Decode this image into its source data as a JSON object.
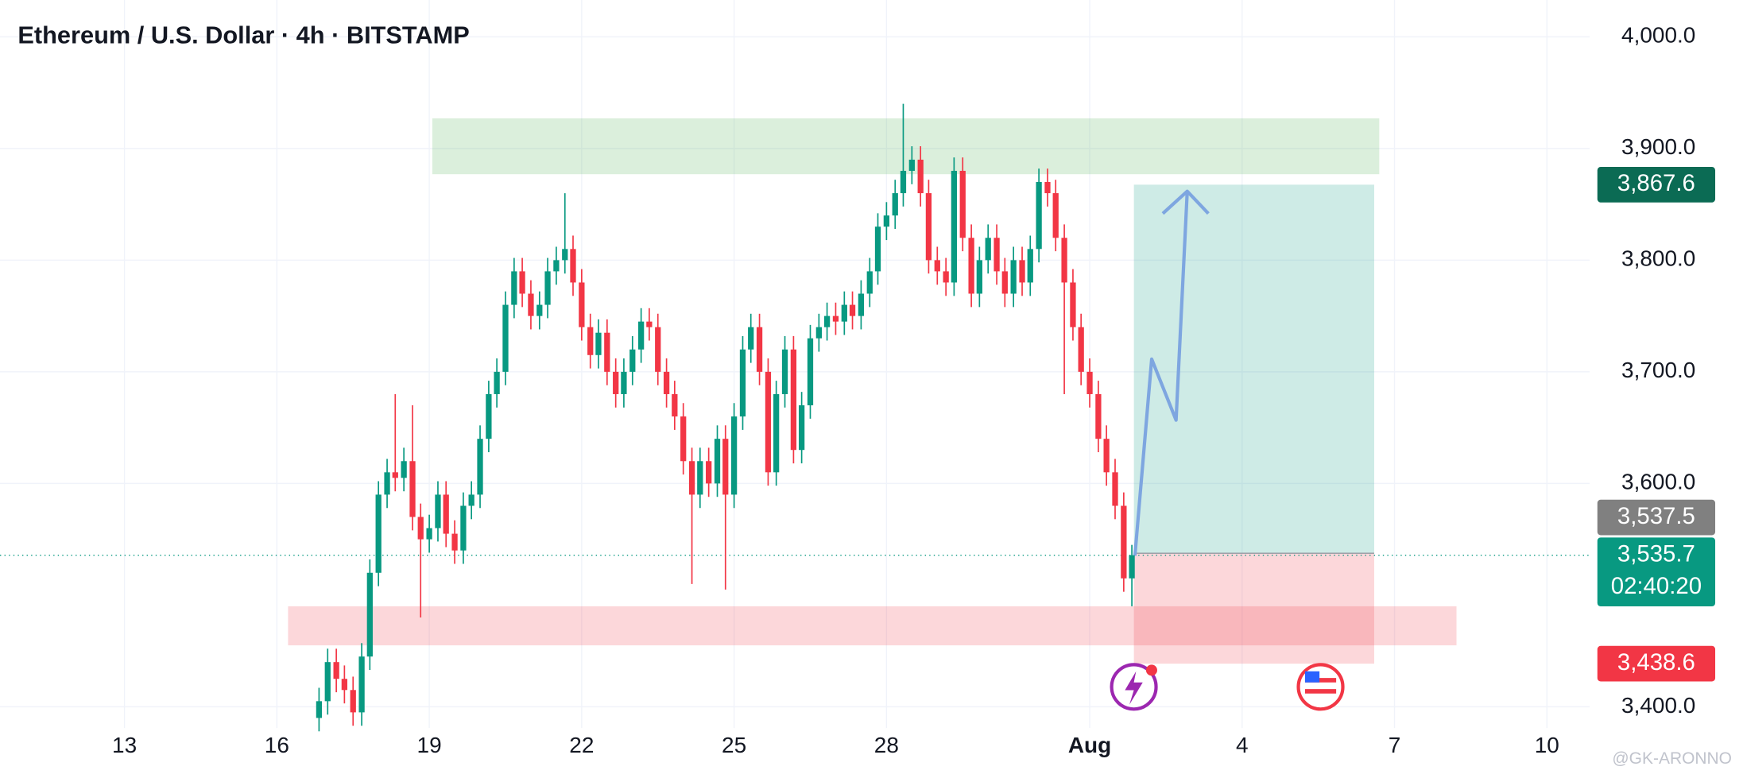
{
  "chart_data": {
    "type": "candlestick",
    "title": "Ethereum / U.S. Dollar · 4h · BITSTAMP",
    "watermark": "@GK-ARONNO",
    "up_color": "#089981",
    "down_color": "#f23645",
    "grid": true,
    "xlim": [
      10.55,
      41.84
    ],
    "ylim": [
      3381,
      4033
    ],
    "xticks": [
      13,
      16,
      19,
      22,
      25,
      28,
      {
        "value": 32,
        "label": "Aug"
      },
      {
        "value": 35,
        "label": "4"
      },
      {
        "value": 38,
        "label": "7"
      },
      {
        "value": 41,
        "label": "10"
      }
    ],
    "yticks": [
      {
        "value": 3400,
        "label": "3,400.0"
      },
      {
        "value": 3600,
        "label": "3,600.0"
      },
      {
        "value": 3700,
        "label": "3,700.0"
      },
      {
        "value": 3800,
        "label": "3,800.0"
      },
      {
        "value": 3900,
        "label": "3,900.0"
      },
      {
        "value": 4000,
        "label": "4,000.0"
      }
    ],
    "x": [
      16.83,
      17,
      17.17,
      17.33,
      17.5,
      17.67,
      17.83,
      18,
      18.17,
      18.33,
      18.5,
      18.67,
      18.83,
      19,
      19.17,
      19.33,
      19.5,
      19.67,
      19.83,
      20,
      20.17,
      20.33,
      20.5,
      20.67,
      20.83,
      21,
      21.17,
      21.33,
      21.5,
      21.67,
      21.83,
      22,
      22.17,
      22.33,
      22.5,
      22.67,
      22.83,
      23,
      23.17,
      23.33,
      23.5,
      23.67,
      23.83,
      24,
      24.17,
      24.33,
      24.5,
      24.67,
      24.83,
      25,
      25.17,
      25.33,
      25.5,
      25.67,
      25.83,
      26,
      26.17,
      26.33,
      26.5,
      26.67,
      26.83,
      27,
      27.17,
      27.33,
      27.5,
      27.67,
      27.83,
      28,
      28.17,
      28.33,
      28.5,
      28.67,
      28.83,
      29,
      29.17,
      29.33,
      29.5,
      29.67,
      29.83,
      30,
      30.17,
      30.33,
      30.5,
      30.67,
      30.83,
      31,
      31.17,
      31.33,
      31.5,
      31.67,
      31.83,
      32,
      32.17,
      32.33,
      32.5,
      32.67,
      32.83
    ],
    "open": [
      3390,
      3405,
      3440,
      3425,
      3415,
      3395,
      3445,
      3520,
      3590,
      3610,
      3605,
      3620,
      3570,
      3550,
      3560,
      3590,
      3555,
      3540,
      3580,
      3590,
      3640,
      3680,
      3700,
      3760,
      3790,
      3770,
      3750,
      3760,
      3790,
      3800,
      3810,
      3780,
      3740,
      3715,
      3735,
      3700,
      3680,
      3700,
      3720,
      3745,
      3740,
      3700,
      3680,
      3660,
      3620,
      3590,
      3620,
      3600,
      3640,
      3590,
      3660,
      3720,
      3740,
      3700,
      3610,
      3680,
      3720,
      3630,
      3670,
      3730,
      3740,
      3750,
      3745,
      3760,
      3750,
      3770,
      3790,
      3830,
      3840,
      3860,
      3880,
      3890,
      3860,
      3800,
      3790,
      3780,
      3880,
      3820,
      3770,
      3800,
      3820,
      3790,
      3770,
      3800,
      3780,
      3810,
      3870,
      3860,
      3820,
      3780,
      3740,
      3700,
      3680,
      3640,
      3610,
      3580,
      3515
    ],
    "high": [
      3417,
      3452,
      3452,
      3437,
      3427,
      3457,
      3532,
      3602,
      3622,
      3680,
      3632,
      3670,
      3582,
      3572,
      3602,
      3602,
      3567,
      3592,
      3602,
      3652,
      3692,
      3712,
      3772,
      3802,
      3802,
      3782,
      3772,
      3802,
      3812,
      3860,
      3822,
      3792,
      3752,
      3747,
      3747,
      3712,
      3712,
      3732,
      3757,
      3757,
      3752,
      3712,
      3692,
      3672,
      3632,
      3632,
      3632,
      3652,
      3652,
      3672,
      3732,
      3752,
      3752,
      3712,
      3692,
      3732,
      3732,
      3682,
      3742,
      3752,
      3762,
      3762,
      3772,
      3772,
      3782,
      3802,
      3842,
      3852,
      3872,
      3940,
      3902,
      3902,
      3872,
      3812,
      3802,
      3892,
      3892,
      3832,
      3812,
      3832,
      3832,
      3802,
      3812,
      3812,
      3822,
      3882,
      3882,
      3872,
      3832,
      3792,
      3752,
      3712,
      3692,
      3652,
      3622,
      3592,
      3545
    ],
    "low": [
      3378,
      3393,
      3413,
      3403,
      3383,
      3383,
      3433,
      3508,
      3578,
      3593,
      3593,
      3558,
      3480,
      3538,
      3548,
      3543,
      3528,
      3528,
      3568,
      3578,
      3628,
      3668,
      3688,
      3748,
      3758,
      3738,
      3738,
      3748,
      3778,
      3788,
      3768,
      3728,
      3703,
      3703,
      3688,
      3668,
      3668,
      3688,
      3708,
      3728,
      3688,
      3668,
      3648,
      3608,
      3510,
      3578,
      3588,
      3588,
      3505,
      3578,
      3648,
      3708,
      3688,
      3598,
      3598,
      3668,
      3618,
      3618,
      3658,
      3718,
      3728,
      3733,
      3733,
      3738,
      3738,
      3758,
      3778,
      3818,
      3828,
      3848,
      3868,
      3848,
      3788,
      3778,
      3768,
      3768,
      3808,
      3758,
      3758,
      3788,
      3778,
      3758,
      3758,
      3768,
      3768,
      3798,
      3848,
      3808,
      3680,
      3728,
      3688,
      3668,
      3628,
      3598,
      3568,
      3503,
      3490
    ],
    "close": [
      3405,
      3440,
      3425,
      3415,
      3395,
      3445,
      3520,
      3590,
      3610,
      3605,
      3620,
      3570,
      3550,
      3560,
      3590,
      3555,
      3540,
      3580,
      3590,
      3640,
      3680,
      3700,
      3760,
      3790,
      3770,
      3750,
      3760,
      3790,
      3800,
      3810,
      3780,
      3740,
      3715,
      3735,
      3700,
      3680,
      3700,
      3720,
      3745,
      3740,
      3700,
      3680,
      3660,
      3620,
      3590,
      3620,
      3600,
      3640,
      3590,
      3660,
      3720,
      3740,
      3700,
      3610,
      3680,
      3720,
      3630,
      3670,
      3730,
      3740,
      3750,
      3745,
      3760,
      3750,
      3770,
      3790,
      3830,
      3840,
      3860,
      3880,
      3890,
      3860,
      3800,
      3790,
      3780,
      3880,
      3820,
      3770,
      3800,
      3820,
      3790,
      3770,
      3800,
      3780,
      3810,
      3870,
      3860,
      3820,
      3780,
      3740,
      3700,
      3680,
      3640,
      3610,
      3580,
      3515,
      3535.7
    ],
    "zones": [
      {
        "top": 3927,
        "bottom": 3877,
        "start": 19.06,
        "end": 37.7,
        "color": "rgba(76,175,80,0.2)"
      },
      {
        "top": 3490,
        "bottom": 3455,
        "start": 16.22,
        "end": 39.22,
        "color": "rgba(242,54,69,0.2)"
      }
    ],
    "position": {
      "entry": 3537.5,
      "target": 3867.6,
      "stop": 3438.6,
      "start": 32.87,
      "end": 37.6,
      "profit_color": "rgba(8,153,129,0.2)",
      "loss_color": "rgba(242,54,69,0.2)"
    },
    "projection": {
      "x": [
        32.89,
        33.22,
        33.7,
        33.92
      ],
      "y": [
        3535.3,
        3711.4,
        3656.7,
        3861.7
      ],
      "color": "#7ea6e0"
    },
    "price_labels": [
      {
        "value": 3867.6,
        "label": "3,867.6",
        "color": "#0b6b54"
      },
      {
        "value": 3537.5,
        "label": "3,537.5",
        "color": "#808080"
      },
      {
        "value": 3535.7,
        "label": "3,535.7",
        "countdown": "02:40:20",
        "color": "#089981"
      },
      {
        "value": 3438.6,
        "label": "3,438.6",
        "color": "#f23645"
      }
    ]
  }
}
